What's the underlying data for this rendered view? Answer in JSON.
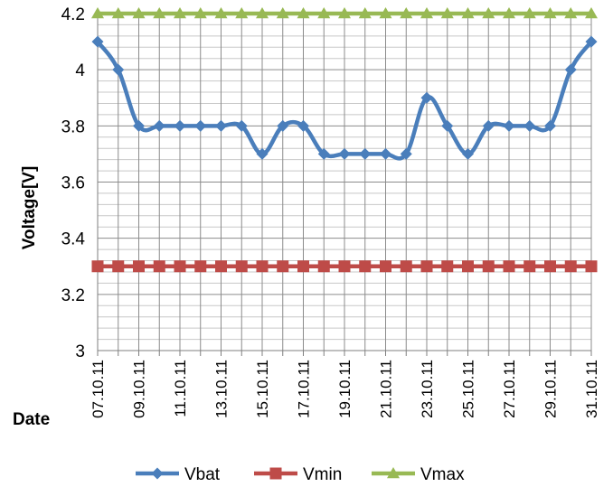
{
  "chart_data": {
    "type": "line",
    "title": "",
    "xlabel": "Date",
    "ylabel": "Voltage[V]",
    "ylim": [
      3,
      4.2
    ],
    "y_ticks": [
      "3",
      "3.2",
      "3.4",
      "3.6",
      "3.8",
      "4",
      "4.2"
    ],
    "x_tick_labels": [
      "07.10.11",
      "09.10.11",
      "11.10.11",
      "13.10.11",
      "15.10.11",
      "17.10.11",
      "19.10.11",
      "21.10.11",
      "23.10.11",
      "25.10.11",
      "27.10.11",
      "29.10.11",
      "31.10.11"
    ],
    "x": [
      "07.10.11",
      "08.10.11",
      "09.10.11",
      "10.10.11",
      "11.10.11",
      "12.10.11",
      "13.10.11",
      "14.10.11",
      "15.10.11",
      "16.10.11",
      "17.10.11",
      "18.10.11",
      "19.10.11",
      "20.10.11",
      "21.10.11",
      "22.10.11",
      "23.10.11",
      "24.10.11",
      "25.10.11",
      "26.10.11",
      "27.10.11",
      "28.10.11",
      "29.10.11",
      "30.10.11",
      "31.10.11"
    ],
    "grid": true,
    "legend_position": "bottom",
    "series": [
      {
        "name": "Vbat",
        "color": "#4A7EBB",
        "marker": "diamond",
        "smooth": true,
        "values": [
          4.1,
          4.0,
          3.8,
          3.8,
          3.8,
          3.8,
          3.8,
          3.8,
          3.7,
          3.8,
          3.8,
          3.7,
          3.7,
          3.7,
          3.7,
          3.7,
          3.9,
          3.8,
          3.7,
          3.8,
          3.8,
          3.8,
          3.8,
          4.0,
          4.1
        ]
      },
      {
        "name": "Vmin",
        "color": "#BE4B48",
        "marker": "square",
        "smooth": false,
        "values": [
          3.3,
          3.3,
          3.3,
          3.3,
          3.3,
          3.3,
          3.3,
          3.3,
          3.3,
          3.3,
          3.3,
          3.3,
          3.3,
          3.3,
          3.3,
          3.3,
          3.3,
          3.3,
          3.3,
          3.3,
          3.3,
          3.3,
          3.3,
          3.3,
          3.3
        ]
      },
      {
        "name": "Vmax",
        "color": "#98B954",
        "marker": "triangle",
        "smooth": false,
        "values": [
          4.2,
          4.2,
          4.2,
          4.2,
          4.2,
          4.2,
          4.2,
          4.2,
          4.2,
          4.2,
          4.2,
          4.2,
          4.2,
          4.2,
          4.2,
          4.2,
          4.2,
          4.2,
          4.2,
          4.2,
          4.2,
          4.2,
          4.2,
          4.2,
          4.2
        ]
      }
    ]
  }
}
